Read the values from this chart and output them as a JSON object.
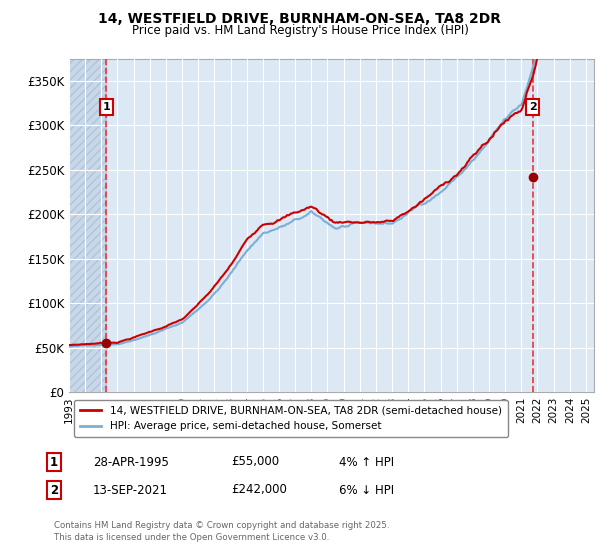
{
  "title_line1": "14, WESTFIELD DRIVE, BURNHAM-ON-SEA, TA8 2DR",
  "title_line2": "Price paid vs. HM Land Registry's House Price Index (HPI)",
  "background_color": "#dce9f5",
  "plot_bg_color": "#dce9f5",
  "hatch_color": "#c8d8ea",
  "grid_color": "#ffffff",
  "red_line_color": "#cc0000",
  "blue_line_color": "#7bafd4",
  "dashed_line_color": "#ee3333",
  "marker_color": "#990000",
  "legend_label_red": "14, WESTFIELD DRIVE, BURNHAM-ON-SEA, TA8 2DR (semi-detached house)",
  "legend_label_blue": "HPI: Average price, semi-detached house, Somerset",
  "annotation1_date": "28-APR-1995",
  "annotation1_price": "£55,000",
  "annotation1_hpi": "4% ↑ HPI",
  "annotation2_date": "13-SEP-2021",
  "annotation2_price": "£242,000",
  "annotation2_hpi": "6% ↓ HPI",
  "sale1_x": 1995.32,
  "sale1_y": 55000,
  "sale2_x": 2021.71,
  "sale2_y": 242000,
  "xmin": 1993,
  "xmax": 2025.5,
  "ymin": 0,
  "ymax": 375000,
  "yticks": [
    0,
    50000,
    100000,
    150000,
    200000,
    250000,
    300000,
    350000
  ],
  "ytick_labels": [
    "£0",
    "£50K",
    "£100K",
    "£150K",
    "£200K",
    "£250K",
    "£300K",
    "£350K"
  ],
  "hatch_xmax": 1995.32,
  "footer_line1": "Contains HM Land Registry data © Crown copyright and database right 2025.",
  "footer_line2": "This data is licensed under the Open Government Licence v3.0."
}
